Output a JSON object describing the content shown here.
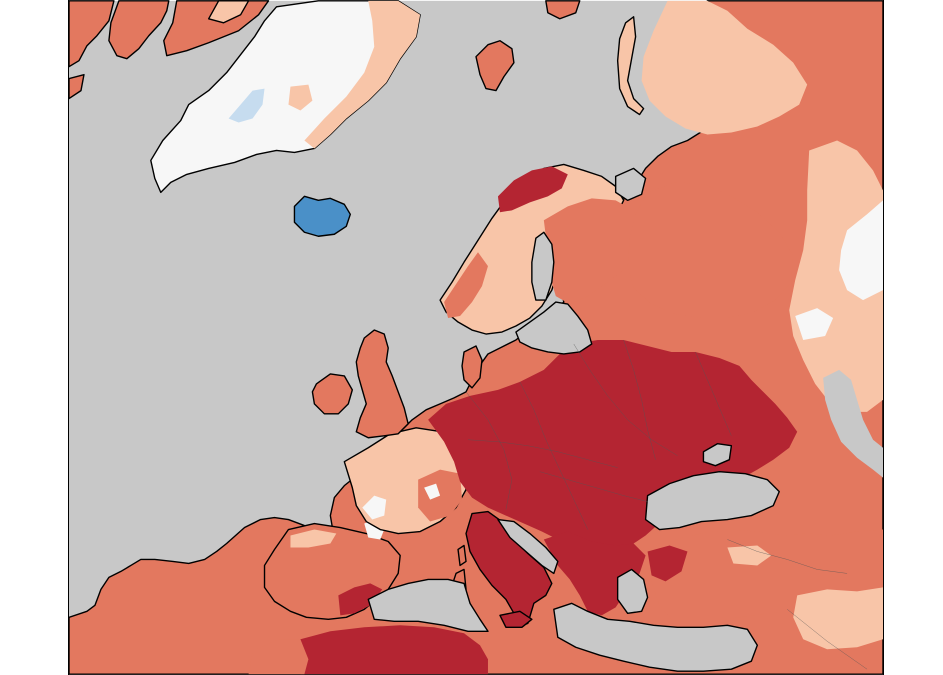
{
  "map": {
    "colors": {
      "sea": "#c8c8c8",
      "strong_cooling": "#4a90c8",
      "cooling": "#c6dcef",
      "neutral": "#f7f7f7",
      "slight_warming": "#f8c5a8",
      "warming": "#e3785f",
      "strong_warming": "#b42532"
    }
  }
}
